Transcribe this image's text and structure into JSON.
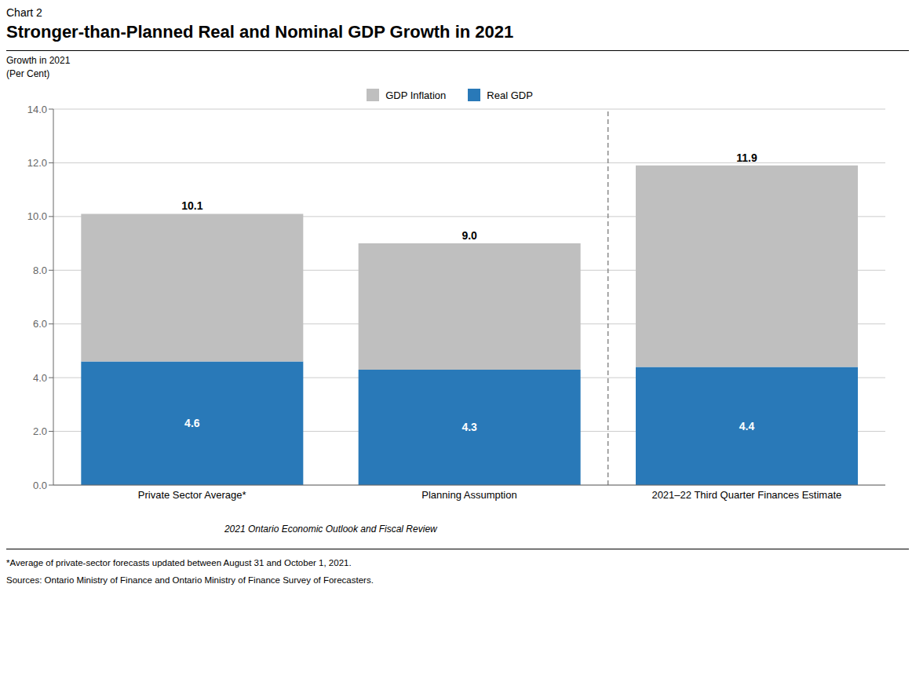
{
  "chart_data": {
    "type": "bar",
    "stacked": true,
    "chart_label": "Chart 2",
    "title": "Stronger-than-Planned Real and Nominal GDP Growth in 2021",
    "ylabel_lines": [
      "Growth in 2021",
      "(Per Cent)"
    ],
    "subtitle": "2021 Ontario Economic Outlook and Fiscal Review",
    "footnotes": [
      "*Average of private-sector forecasts updated between August 31 and October 1, 2021.",
      "Sources: Ontario Ministry of Finance and Ontario Ministry of Finance Survey of Forecasters."
    ],
    "categories": [
      "Private Sector Average*",
      "Planning Assumption",
      "2021–22 Third Quarter Finances Estimate"
    ],
    "series": [
      {
        "name": "Real GDP",
        "color": "#2979B8",
        "values": [
          4.6,
          4.3,
          4.4
        ],
        "data_labels": true
      },
      {
        "name": "GDP Inflation",
        "color": "#BFBFBF",
        "values": [
          5.5,
          4.7,
          7.5
        ]
      }
    ],
    "totals": {
      "values": [
        10.1,
        9.0,
        11.9
      ],
      "value_labels": [
        "10.1",
        "9.0",
        "11.9"
      ]
    },
    "ylim": [
      0.0,
      14.0
    ],
    "yticks": [
      {
        "value": 0,
        "label": "0.0"
      },
      {
        "value": 2,
        "label": "2.0"
      },
      {
        "value": 4,
        "label": "4.0"
      },
      {
        "value": 6,
        "label": "6.0"
      },
      {
        "value": 8,
        "label": "8.0"
      },
      {
        "value": 10,
        "label": "10.0"
      },
      {
        "value": 12,
        "label": "12.0"
      },
      {
        "value": 14,
        "label": "14.0"
      }
    ],
    "grid": true,
    "legend": "top"
  }
}
